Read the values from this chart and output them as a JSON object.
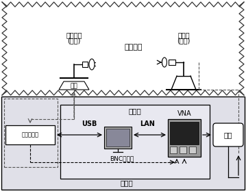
{
  "fig_width": 3.59,
  "fig_height": 2.79,
  "dpi": 100,
  "title_chamber": "微波暗室",
  "label_antenna_test_line1": "待测天线",
  "label_antenna_test_line2": "(接收)",
  "label_antenna_source_line1": "源天线",
  "label_antenna_source_line2": "(发射)",
  "label_turntable": "转台",
  "label_computer": "计算机",
  "label_controller_box": "转台控制箱",
  "label_control_room": "控制室",
  "label_vna": "VNA",
  "label_amp": "功放",
  "label_usb": "USB",
  "label_lan": "LAN",
  "label_bnc": "BNC同轴线"
}
